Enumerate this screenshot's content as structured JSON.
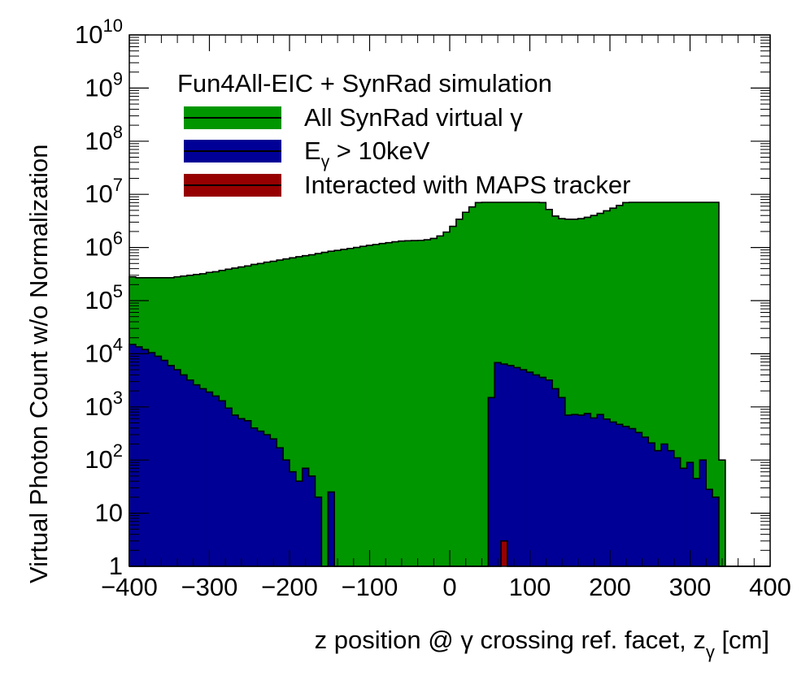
{
  "chart_data": {
    "type": "histogram",
    "title": "Fun4All-EIC + SynRad simulation",
    "xlabel": "z position @ γ crossing ref. facet, z",
    "xlabel_sub": "γ",
    "xlabel_unit": " [cm]",
    "ylabel": "Virtual Photon Count w/o Normalization",
    "xlim": [
      -400,
      400
    ],
    "ylim": [
      1,
      10000000000
    ],
    "yscale": "log",
    "grid": false,
    "legend_position": "top-left",
    "x_ticks": [
      "−400",
      "−300",
      "−200",
      "−100",
      "0",
      "100",
      "200",
      "300",
      "400"
    ],
    "x_tick_values": [
      -400,
      -300,
      -200,
      -100,
      0,
      100,
      200,
      300,
      400
    ],
    "y_ticks": [
      {
        "base": "1",
        "exp": ""
      },
      {
        "base": "10",
        "exp": ""
      },
      {
        "base": "10",
        "exp": "2"
      },
      {
        "base": "10",
        "exp": "3"
      },
      {
        "base": "10",
        "exp": "4"
      },
      {
        "base": "10",
        "exp": "5"
      },
      {
        "base": "10",
        "exp": "6"
      },
      {
        "base": "10",
        "exp": "7"
      },
      {
        "base": "10",
        "exp": "8"
      },
      {
        "base": "10",
        "exp": "9"
      },
      {
        "base": "10",
        "exp": "10"
      }
    ],
    "y_tick_values": [
      1,
      10,
      100,
      1000,
      10000,
      100000,
      1000000,
      10000000,
      100000000,
      1000000000,
      10000000000
    ],
    "bin_edges": [
      -400,
      350
    ],
    "bin_width": 8,
    "series": [
      {
        "name": "All SynRad virtual  γ",
        "color": "#009600",
        "values": [
          280000,
          270000,
          270000,
          270000,
          270000,
          270000,
          270000,
          280000,
          290000,
          300000,
          310000,
          320000,
          340000,
          350000,
          370000,
          390000,
          410000,
          430000,
          450000,
          480000,
          500000,
          530000,
          550000,
          580000,
          610000,
          640000,
          670000,
          700000,
          730000,
          770000,
          810000,
          850000,
          880000,
          920000,
          960000,
          1000000,
          1050000,
          1100000,
          1140000,
          1190000,
          1230000,
          1280000,
          1320000,
          1340000,
          1350000,
          1360000,
          1400000,
          1480000,
          1650000,
          1950000,
          2500000,
          3400000,
          4600000,
          5800000,
          7000000,
          13000000,
          13000000,
          13000000,
          13000000,
          13000000,
          13000000,
          13000000,
          13000000,
          13000000,
          7000000,
          5200000,
          3900000,
          3500000,
          3400000,
          3400000,
          3500000,
          3700000,
          4000000,
          4400000,
          4900000,
          5500000,
          6200000,
          7000000,
          13000000,
          13000000,
          13000000,
          13000000,
          13000000,
          13000000,
          13000000,
          13000000,
          13000000,
          13000000,
          13000000,
          13000000,
          13000000,
          13000000,
          100,
          1,
          1,
          1,
          1,
          1,
          1,
          1
        ]
      },
      {
        "name": "E",
        "name_sub": "γ",
        "name_suffix": " > 10keV",
        "color": "#000096",
        "values": [
          15000,
          13500,
          12000,
          10500,
          9000,
          7500,
          6000,
          5000,
          4000,
          3200,
          2600,
          2200,
          1900,
          1600,
          1300,
          950,
          700,
          600,
          550,
          400,
          350,
          300,
          250,
          170,
          100,
          60,
          40,
          70,
          50,
          20,
          0,
          25,
          0,
          0,
          0,
          0,
          0,
          0,
          0,
          0,
          0,
          0,
          0,
          0,
          0,
          0,
          0,
          0,
          0,
          0,
          0,
          0,
          0,
          0,
          0,
          0,
          1500,
          6800,
          6400,
          6000,
          5500,
          5000,
          4500,
          4000,
          3600,
          3200,
          2200,
          1500,
          700,
          720,
          700,
          750,
          620,
          720,
          590,
          520,
          470,
          430,
          390,
          330,
          270,
          210,
          150,
          200,
          150,
          110,
          70,
          90,
          45,
          100,
          28,
          20,
          0,
          0,
          0,
          0,
          0,
          0,
          0,
          0
        ]
      },
      {
        "name": "Interacted with MAPS tracker",
        "color": "#960000",
        "values": [
          0,
          0,
          0,
          0,
          0,
          0,
          0,
          0,
          0,
          0,
          0,
          0,
          0,
          0,
          0,
          0,
          0,
          0,
          0,
          0,
          0,
          0,
          0,
          0,
          0,
          0,
          0,
          0,
          0,
          0,
          0,
          0,
          0,
          0,
          0,
          0,
          0,
          0,
          0,
          0,
          0,
          0,
          0,
          0,
          0,
          0,
          0,
          0,
          0,
          0,
          0,
          0,
          0,
          0,
          0,
          0,
          0,
          0,
          3,
          0,
          0,
          0,
          0,
          0,
          0,
          0,
          0,
          0,
          0,
          0,
          0,
          0,
          0,
          0,
          0,
          0,
          0,
          0,
          0,
          0,
          0,
          0,
          0,
          0,
          0,
          0,
          0,
          0,
          0,
          0,
          0,
          0,
          0,
          0,
          0,
          0,
          0,
          0,
          0,
          0
        ]
      }
    ]
  }
}
